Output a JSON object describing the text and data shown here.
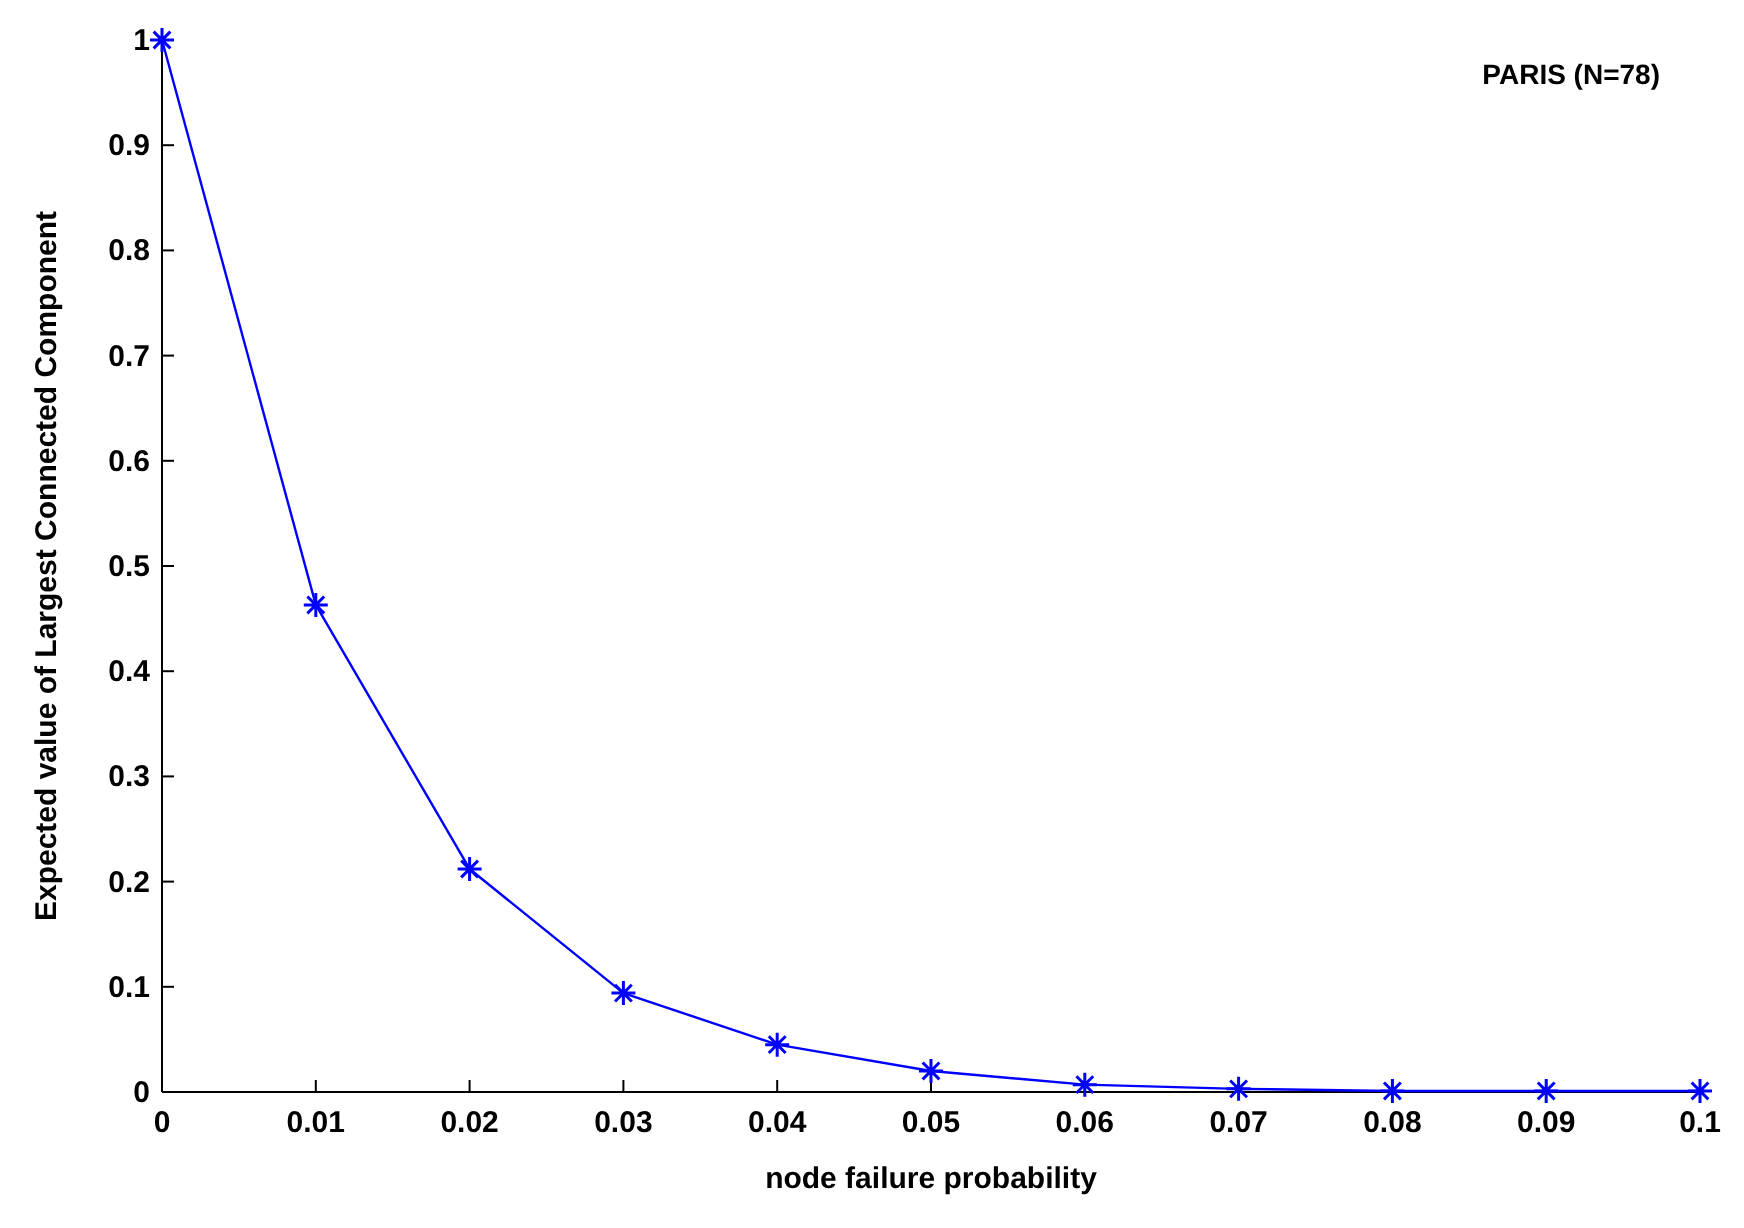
{
  "chart_data": {
    "type": "line",
    "title": "PARIS (N=78)",
    "xlabel": "node failure probability",
    "ylabel": "Expected value of Largest Connected Component",
    "x": [
      0,
      0.01,
      0.02,
      0.03,
      0.04,
      0.05,
      0.06,
      0.07,
      0.08,
      0.09,
      0.1
    ],
    "series": [
      {
        "color": "#0000ff",
        "values": [
          1,
          0.463,
          0.212,
          0.094,
          0.045,
          0.02,
          0.007,
          0.003,
          0.001,
          0.001,
          0.001
        ]
      }
    ],
    "xlim": [
      0,
      0.1
    ],
    "xticks": [
      0,
      0.01,
      0.02,
      0.03,
      0.04,
      0.05,
      0.06,
      0.07,
      0.08,
      0.09,
      0.1
    ],
    "ylim": [
      0,
      1
    ],
    "yticks": [
      0,
      0.1,
      0.2,
      0.3,
      0.4,
      0.5,
      0.6,
      0.7,
      0.8,
      0.9,
      1
    ],
    "grid": false,
    "marker": "cross",
    "line_style": "solid"
  }
}
